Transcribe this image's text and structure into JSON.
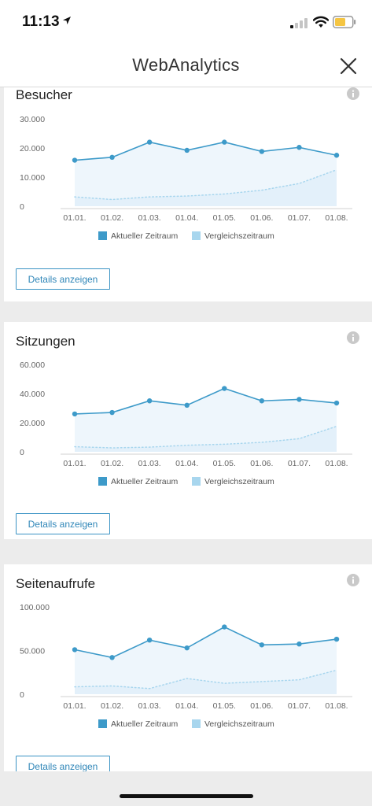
{
  "status_bar": {
    "time": "11:13"
  },
  "nav": {
    "title": "WebAnalytics"
  },
  "colors": {
    "current": "#3d9ac9",
    "comparison": "#a8d6ee",
    "area_fill": "#eef6fc",
    "button": "#3a93c4"
  },
  "cards": [
    {
      "title": "Besucher",
      "details_label": "Details anzeigen",
      "chart_data": {
        "type": "line",
        "categories": [
          "01.01.",
          "01.02.",
          "01.03.",
          "01.04.",
          "01.05.",
          "01.06.",
          "01.07.",
          "01.08."
        ],
        "yticks": [
          "30.000",
          "20.000",
          "10.000",
          "0"
        ],
        "ylim": [
          0,
          30000
        ],
        "series": [
          {
            "name": "Aktueller Zeitraum",
            "values": [
              15800,
              16800,
              22000,
              19200,
              22000,
              18800,
              20200,
              17500
            ]
          },
          {
            "name": "Vergleichszeitraum",
            "values": [
              3200,
              2300,
              3200,
              3500,
              4200,
              5500,
              7800,
              12500
            ]
          }
        ],
        "legend_position": "bottom"
      }
    },
    {
      "title": "Sitzungen",
      "details_label": "Details anzeigen",
      "chart_data": {
        "type": "line",
        "categories": [
          "01.01.",
          "01.02.",
          "01.03.",
          "01.04.",
          "01.05.",
          "01.06.",
          "01.07.",
          "01.08."
        ],
        "yticks": [
          "60.000",
          "40.000",
          "20.000",
          "0"
        ],
        "ylim": [
          0,
          60000
        ],
        "series": [
          {
            "name": "Aktueller Zeitraum",
            "values": [
              26000,
              27000,
              35000,
              32000,
              43500,
              35000,
              36000,
              33500
            ]
          },
          {
            "name": "Vergleichszeitraum",
            "values": [
              3500,
              2700,
              3200,
              4500,
              5200,
              6500,
              9000,
              17500
            ]
          }
        ],
        "legend_position": "bottom"
      }
    },
    {
      "title": "Seitenaufrufe",
      "details_label": "Details anzeigen",
      "chart_data": {
        "type": "line",
        "categories": [
          "01.01.",
          "01.02.",
          "01.03.",
          "01.04.",
          "01.05.",
          "01.06.",
          "01.07.",
          "01.08."
        ],
        "yticks": [
          "100.000",
          "50.000",
          "0"
        ],
        "ylim": [
          0,
          100000
        ],
        "series": [
          {
            "name": "Aktueller Zeitraum",
            "values": [
              51000,
              42000,
              62000,
              53000,
              77000,
              56500,
              57500,
              63000
            ]
          },
          {
            "name": "Vergleichszeitraum",
            "values": [
              8500,
              9500,
              6500,
              18000,
              12500,
              14500,
              16500,
              27500
            ]
          }
        ],
        "legend_position": "bottom"
      }
    }
  ]
}
